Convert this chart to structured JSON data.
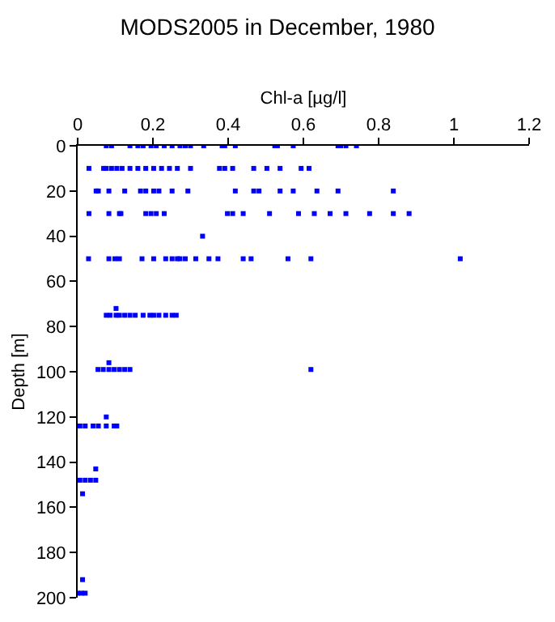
{
  "chart_data": {
    "type": "scatter",
    "title": "MODS2005 in December, 1980",
    "xlabel": "Chl-a [µg/l]",
    "ylabel": "Depth [m]",
    "xlim": [
      0,
      1.2
    ],
    "xticks": [
      0,
      0.2,
      0.4,
      0.6,
      0.8,
      1,
      1.2
    ],
    "ylim": [
      200,
      0
    ],
    "yticks": [
      0,
      20,
      40,
      60,
      80,
      100,
      120,
      140,
      160,
      180,
      200
    ],
    "marker": "square",
    "series": [
      {
        "color": "#0000ff",
        "x": [
          0.076,
          0.09,
          0.139,
          0.16,
          0.174,
          0.195,
          0.209,
          0.23,
          0.251,
          0.272,
          0.286,
          0.3,
          0.335,
          0.384,
          0.391,
          0.419,
          0.524,
          0.531,
          0.573,
          0.692,
          0.699,
          0.713,
          0.741,
          0.03,
          0.069,
          0.076,
          0.09,
          0.104,
          0.118,
          0.139,
          0.16,
          0.181,
          0.202,
          0.223,
          0.244,
          0.265,
          0.3,
          0.377,
          0.391,
          0.412,
          0.468,
          0.503,
          0.538,
          0.594,
          0.615,
          0.049,
          0.055,
          0.083,
          0.125,
          0.167,
          0.181,
          0.202,
          0.216,
          0.251,
          0.293,
          0.419,
          0.468,
          0.482,
          0.538,
          0.573,
          0.636,
          0.692,
          0.839,
          0.03,
          0.083,
          0.111,
          0.115,
          0.181,
          0.195,
          0.209,
          0.23,
          0.398,
          0.412,
          0.44,
          0.51,
          0.587,
          0.629,
          0.671,
          0.713,
          0.776,
          0.839,
          0.881,
          0.332,
          0.029,
          0.083,
          0.099,
          0.111,
          0.171,
          0.202,
          0.234,
          0.251,
          0.265,
          0.272,
          0.286,
          0.314,
          0.349,
          0.373,
          0.44,
          0.461,
          0.559,
          0.62,
          1.017,
          0.076,
          0.086,
          0.102,
          0.111,
          0.125,
          0.139,
          0.153,
          0.174,
          0.192,
          0.202,
          0.216,
          0.234,
          0.251,
          0.262,
          0.102,
          0.054,
          0.068,
          0.083,
          0.097,
          0.111,
          0.125,
          0.139,
          0.083,
          0.62,
          0.006,
          0.02,
          0.041,
          0.055,
          0.076,
          0.097,
          0.104,
          0.076,
          0.006,
          0.02,
          0.034,
          0.048,
          0.048,
          0.013,
          0.0,
          0.01,
          0.02,
          0.013
        ],
        "values": [
          0,
          0,
          0,
          0,
          0,
          0,
          0,
          0,
          0,
          0,
          0,
          0,
          0,
          0,
          0,
          0,
          0,
          0,
          0,
          0,
          0,
          0,
          0,
          10,
          10,
          10,
          10,
          10,
          10,
          10,
          10,
          10,
          10,
          10,
          10,
          10,
          10,
          10,
          10,
          10,
          10,
          10,
          10,
          10,
          10,
          20,
          20,
          20,
          20,
          20,
          20,
          20,
          20,
          20,
          20,
          20,
          20,
          20,
          20,
          20,
          20,
          20,
          20,
          30,
          30,
          30,
          30,
          30,
          30,
          30,
          30,
          30,
          30,
          30,
          30,
          30,
          30,
          30,
          30,
          30,
          30,
          30,
          40,
          50,
          50,
          50,
          50,
          50,
          50,
          50,
          50,
          50,
          50,
          50,
          50,
          50,
          50,
          50,
          50,
          50,
          50,
          50,
          75,
          75,
          75,
          75,
          75,
          75,
          75,
          75,
          75,
          75,
          75,
          75,
          75,
          75,
          72,
          99,
          99,
          99,
          99,
          99,
          99,
          99,
          96,
          99,
          124,
          124,
          124,
          124,
          124,
          124,
          124,
          120,
          148,
          148,
          148,
          148,
          143,
          154,
          198,
          198,
          198,
          192
        ]
      }
    ]
  }
}
